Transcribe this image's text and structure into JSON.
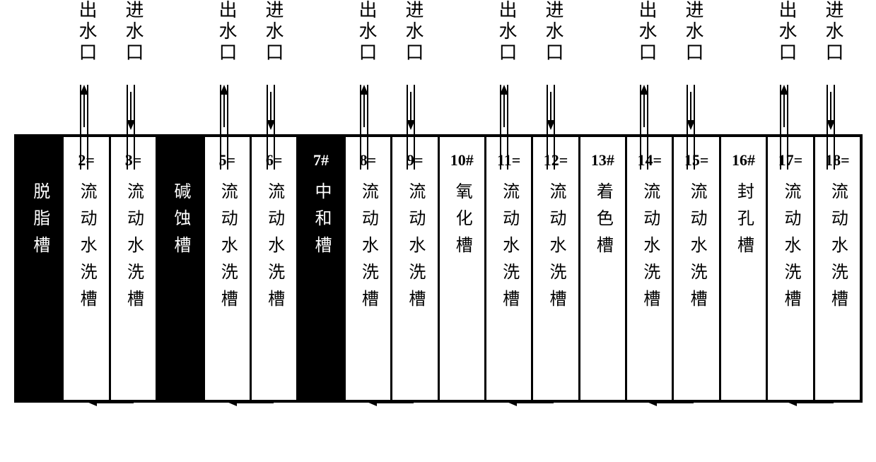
{
  "port_out_label": "出水口",
  "port_in_label": "进水口",
  "tanks": [
    {
      "id": "1#",
      "label": "脱脂槽",
      "filled": true,
      "show_id": false
    },
    {
      "id": "2=",
      "label": "流动水洗槽",
      "filled": false,
      "show_id": true
    },
    {
      "id": "3=",
      "label": "流动水洗槽",
      "filled": false,
      "show_id": true
    },
    {
      "id": "4#",
      "label": "碱蚀槽",
      "filled": true,
      "show_id": false
    },
    {
      "id": "5=",
      "label": "流动水洗槽",
      "filled": false,
      "show_id": true
    },
    {
      "id": "6=",
      "label": "流动水洗槽",
      "filled": false,
      "show_id": true
    },
    {
      "id": "7#",
      "label": "中和槽",
      "filled": true,
      "show_id": true
    },
    {
      "id": "8=",
      "label": "流动水洗槽",
      "filled": false,
      "show_id": true
    },
    {
      "id": "9=",
      "label": "流动水洗槽",
      "filled": false,
      "show_id": true
    },
    {
      "id": "10#",
      "label": "氧化槽",
      "filled": false,
      "show_id": true
    },
    {
      "id": "11=",
      "label": "流动水洗槽",
      "filled": false,
      "show_id": true
    },
    {
      "id": "12=",
      "label": "流动水洗槽",
      "filled": false,
      "show_id": true
    },
    {
      "id": "13#",
      "label": "着色槽",
      "filled": false,
      "show_id": true
    },
    {
      "id": "14=",
      "label": "流动水洗槽",
      "filled": false,
      "show_id": true
    },
    {
      "id": "15=",
      "label": "流动水洗槽",
      "filled": false,
      "show_id": true
    },
    {
      "id": "16#",
      "label": "封孔槽",
      "filled": false,
      "show_id": true
    },
    {
      "id": "17=",
      "label": "流动水洗槽",
      "filled": false,
      "show_id": true
    },
    {
      "id": "18=",
      "label": "流动水洗槽",
      "filled": false,
      "show_id": true
    }
  ],
  "port_pairs": [
    {
      "out_tank_index": 1,
      "in_tank_index": 2
    },
    {
      "out_tank_index": 4,
      "in_tank_index": 5
    },
    {
      "out_tank_index": 7,
      "in_tank_index": 8
    },
    {
      "out_tank_index": 10,
      "in_tank_index": 11
    },
    {
      "out_tank_index": 13,
      "in_tank_index": 14
    },
    {
      "out_tank_index": 16,
      "in_tank_index": 17
    }
  ],
  "bottom_flows": [
    {
      "from_tank_index": 2,
      "to_tank_index": 1
    },
    {
      "from_tank_index": 5,
      "to_tank_index": 4
    },
    {
      "from_tank_index": 8,
      "to_tank_index": 7
    },
    {
      "from_tank_index": 11,
      "to_tank_index": 10
    },
    {
      "from_tank_index": 14,
      "to_tank_index": 13
    },
    {
      "from_tank_index": 17,
      "to_tank_index": 16
    }
  ],
  "colors": {
    "background": "#ffffff",
    "ink": "#000000"
  },
  "layout": {
    "tank_count": 18,
    "row_left": 0,
    "row_width": 1200,
    "tank_width": 66.0
  }
}
